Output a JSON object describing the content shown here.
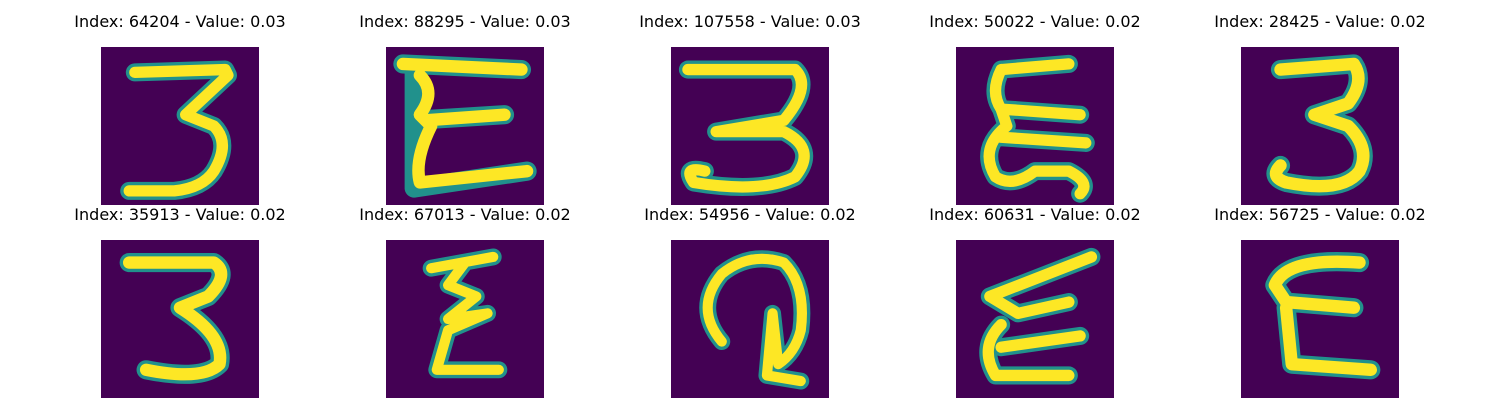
{
  "colors": {
    "background": "#440154",
    "low": "#31688e",
    "mid": "#21918c",
    "high": "#fde725"
  },
  "panels": [
    {
      "index": "64204",
      "value": "0.03",
      "title": "Index: 64204 - Value: 0.03"
    },
    {
      "index": "88295",
      "value": "0.03",
      "title": "Index: 88295 - Value: 0.03"
    },
    {
      "index": "107558",
      "value": "0.03",
      "title": "Index: 107558 - Value: 0.03"
    },
    {
      "index": "50022",
      "value": "0.02",
      "title": "Index: 50022 - Value: 0.02"
    },
    {
      "index": "28425",
      "value": "0.02",
      "title": "Index: 28425 - Value: 0.02"
    },
    {
      "index": "35913",
      "value": "0.02",
      "title": "Index: 35913 - Value: 0.02"
    },
    {
      "index": "67013",
      "value": "0.02",
      "title": "Index: 67013 - Value: 0.02"
    },
    {
      "index": "54956",
      "value": "0.02",
      "title": "Index: 54956 - Value: 0.02"
    },
    {
      "index": "60631",
      "value": "0.02",
      "title": "Index: 60631 - Value: 0.02"
    },
    {
      "index": "56725",
      "value": "0.02",
      "title": "Index: 56725 - Value: 0.02"
    }
  ]
}
